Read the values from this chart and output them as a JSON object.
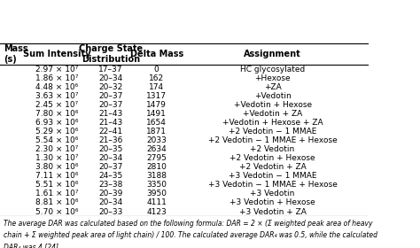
{
  "col_headers": [
    "Mass\n(s)",
    "Sum Intensity",
    "Charge State\nDistribution",
    "Delta Mass",
    "Assignment"
  ],
  "rows": [
    [
      "",
      "2.97 × 10⁷",
      "17–37",
      "0",
      "HC glycosylated"
    ],
    [
      "",
      "1.86 × 10⁷",
      "20–34",
      "162",
      "+Hexose"
    ],
    [
      "",
      "4.48 × 10⁶",
      "20–32",
      "174",
      "+ZA"
    ],
    [
      "",
      "3.63 × 10⁷",
      "20–37",
      "1317",
      "+Vedotin"
    ],
    [
      "",
      "2.45 × 10⁷",
      "20–37",
      "1479",
      "+Vedotin + Hexose"
    ],
    [
      "",
      "7.80 × 10⁶",
      "21–43",
      "1491",
      "+Vedotin + ZA"
    ],
    [
      "",
      "6.93 × 10⁶",
      "21–43",
      "1654",
      "+Vedotin + Hexose + ZA"
    ],
    [
      "",
      "5.29 × 10⁶",
      "22–41",
      "1871",
      "+2 Vedotin − 1 MMAE"
    ],
    [
      "",
      "5.54 × 10⁶",
      "21–36",
      "2033",
      "+2 Vedotin − 1 MMAE + Hexose"
    ],
    [
      "",
      "2.30 × 10⁷",
      "20–35",
      "2634",
      "+2 Vedotin"
    ],
    [
      "",
      "1.30 × 10⁷",
      "20–34",
      "2795",
      "+2 Vedotin + Hexose"
    ],
    [
      "",
      "3.80 × 10⁶",
      "20–37",
      "2810",
      "+2 Vedotin + ZA"
    ],
    [
      "",
      "7.11 × 10⁶",
      "24–35",
      "3188",
      "+3 Vedotin − 1 MMAE"
    ],
    [
      "",
      "5.51 × 10⁶",
      "23–38",
      "3350",
      "+3 Vedotin − 1 MMAE + Hexose"
    ],
    [
      "",
      "1.61 × 10⁷",
      "20–39",
      "3950",
      "+3 Vedotin"
    ],
    [
      "",
      "8.81 × 10⁶",
      "20–34",
      "4111",
      "+3 Vedotin + Hexose"
    ],
    [
      "",
      "5.70 × 10⁶",
      "20–33",
      "4123",
      "+3 Vedotin + ZA"
    ]
  ],
  "footnote": "The average DAR was calculated based on the following formula: DAR = 2 × (Σ weighted peak area of heavy\nchain + Σ weighted peak area of light chain) / 100. The calculated average DAR₄ was 0.5, while the calculated\nDAR₄ was 4 [24].",
  "bg_color": "#ffffff",
  "header_color": "#ffffff",
  "font_size": 6.5,
  "header_font_size": 7.0
}
